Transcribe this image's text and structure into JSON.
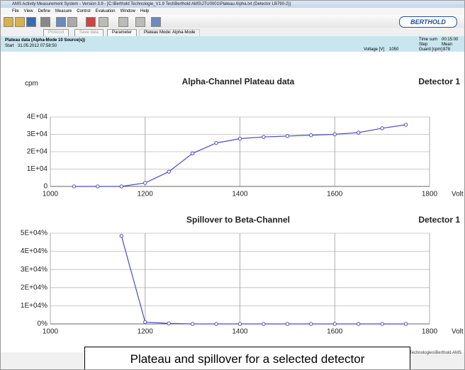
{
  "window": {
    "title": "AMS  Activity Measurement System  -  Version 3.9  -  [C:\\Berthold Technologie_V1.9 Test\\Berthold AMS\\JTU0001\\Plateau Alpha.txt (Detector LB790-2)]",
    "menu": [
      "File",
      "View",
      "Define",
      "Measure",
      "Control",
      "Evaluation",
      "Window",
      "Help"
    ],
    "logo": "BERTHOLD"
  },
  "buttons": [
    "Protocol",
    "Save data",
    "Parameter"
  ],
  "mode": "Plateau Mode: Alpha-Mode",
  "info": {
    "heading": "Plateau data (Alpha-Mode 10 Source(s))",
    "start_label": "Start",
    "start": "31.05.2012   07:58:50",
    "time_sum_label": "Time sum",
    "time_sum": "00:15:00",
    "step_label": "Step",
    "step": "Mean",
    "voltage_label": "Voltage [V]",
    "voltage": "1050",
    "guard_label": "Guard [cpm]",
    "guard": "878"
  },
  "chart_data": [
    {
      "type": "line",
      "title": "Alpha-Channel Plateau data",
      "detector": "Detector 1",
      "y_label": "cpm",
      "x_label": "Volt",
      "x": [
        1050,
        1100,
        1150,
        1200,
        1250,
        1300,
        1350,
        1400,
        1450,
        1500,
        1550,
        1600,
        1650,
        1700,
        1750
      ],
      "series": [
        {
          "color": "#4a4ad0",
          "values": [
            0,
            0,
            0,
            2000,
            8500,
            19000,
            25000,
            27500,
            28500,
            29000,
            29500,
            30000,
            31000,
            33500,
            35500
          ]
        }
      ],
      "xlim": [
        1000,
        1800
      ],
      "ylim": [
        0,
        40000
      ],
      "xticks": [
        1000,
        1200,
        1400,
        1600,
        1800
      ],
      "yticks": [
        0,
        {
          "value": 10000,
          "label": "1E+04"
        },
        {
          "value": 20000,
          "label": "2E+04"
        },
        {
          "value": 30000,
          "label": "3E+04"
        },
        {
          "value": 40000,
          "label": "4E+04"
        }
      ],
      "grid": true
    },
    {
      "type": "line",
      "title": "Spillover to Beta-Channel",
      "detector": "Detector 1",
      "x_label": "Volt",
      "x": [
        1150,
        1200,
        1250,
        1300,
        1350,
        1400,
        1450,
        1500,
        1550,
        1600,
        1650,
        1700,
        1750
      ],
      "series": [
        {
          "color": "#4a4ad0",
          "values": [
            48500,
            1000,
            300,
            0,
            0,
            0,
            0,
            0,
            0,
            0,
            0,
            0,
            0
          ]
        }
      ],
      "xlim": [
        1000,
        1800
      ],
      "ylim": [
        0,
        50000
      ],
      "xticks": [
        1000,
        1200,
        1400,
        1600,
        1800
      ],
      "yticks": [
        {
          "value": 0,
          "label": "0%"
        },
        {
          "value": 10000,
          "label": "1E+04%"
        },
        {
          "value": 20000,
          "label": "2E+04%"
        },
        {
          "value": 30000,
          "label": "3E+04%"
        },
        {
          "value": 40000,
          "label": "4E+04%"
        },
        {
          "value": 50000,
          "label": "5E+04%"
        }
      ],
      "grid": true
    }
  ],
  "status": "Technologies\\Berthold AMS",
  "caption": "Plateau and spillover for a selected detector"
}
